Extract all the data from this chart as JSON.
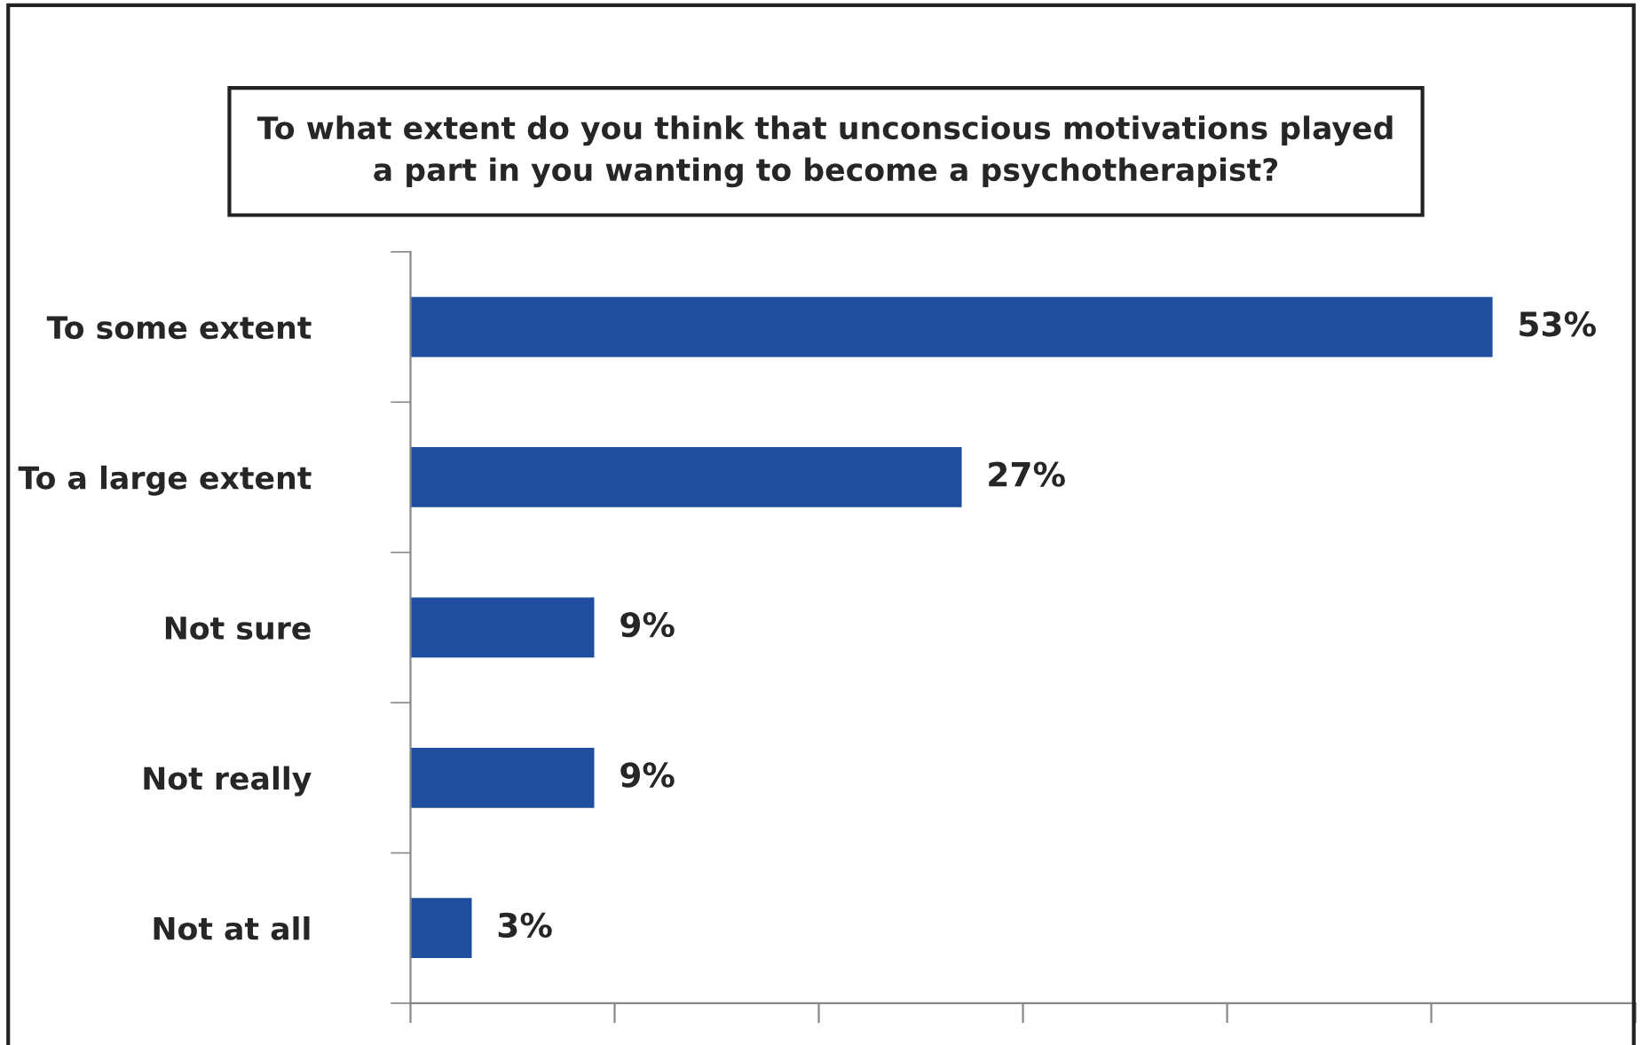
{
  "chart_data": {
    "type": "bar",
    "orientation": "horizontal",
    "title": "To what extent do you think that unconscious motivations played\na part in you wanting to become a psychotherapist?",
    "categories": [
      "To some extent",
      "To a large extent",
      "Not sure",
      "Not really",
      "Not at all"
    ],
    "values": [
      53,
      27,
      9,
      9,
      3
    ],
    "color": "#1f4e9f",
    "data_labels": true,
    "value_labels": [
      "53%",
      "27%",
      "9%",
      "9%",
      "3%"
    ],
    "xlim": [
      0,
      60
    ],
    "xticks": [
      {
        "value": 0,
        "label": null
      },
      {
        "value": 10,
        "label": null
      },
      {
        "value": 20,
        "label": null
      },
      {
        "value": 30,
        "label": null
      },
      {
        "value": 40,
        "label": null
      },
      {
        "value": 50,
        "label": null
      },
      {
        "value": 60,
        "label": null
      }
    ],
    "tick_labels": "y",
    "grid": false,
    "legend": false
  }
}
